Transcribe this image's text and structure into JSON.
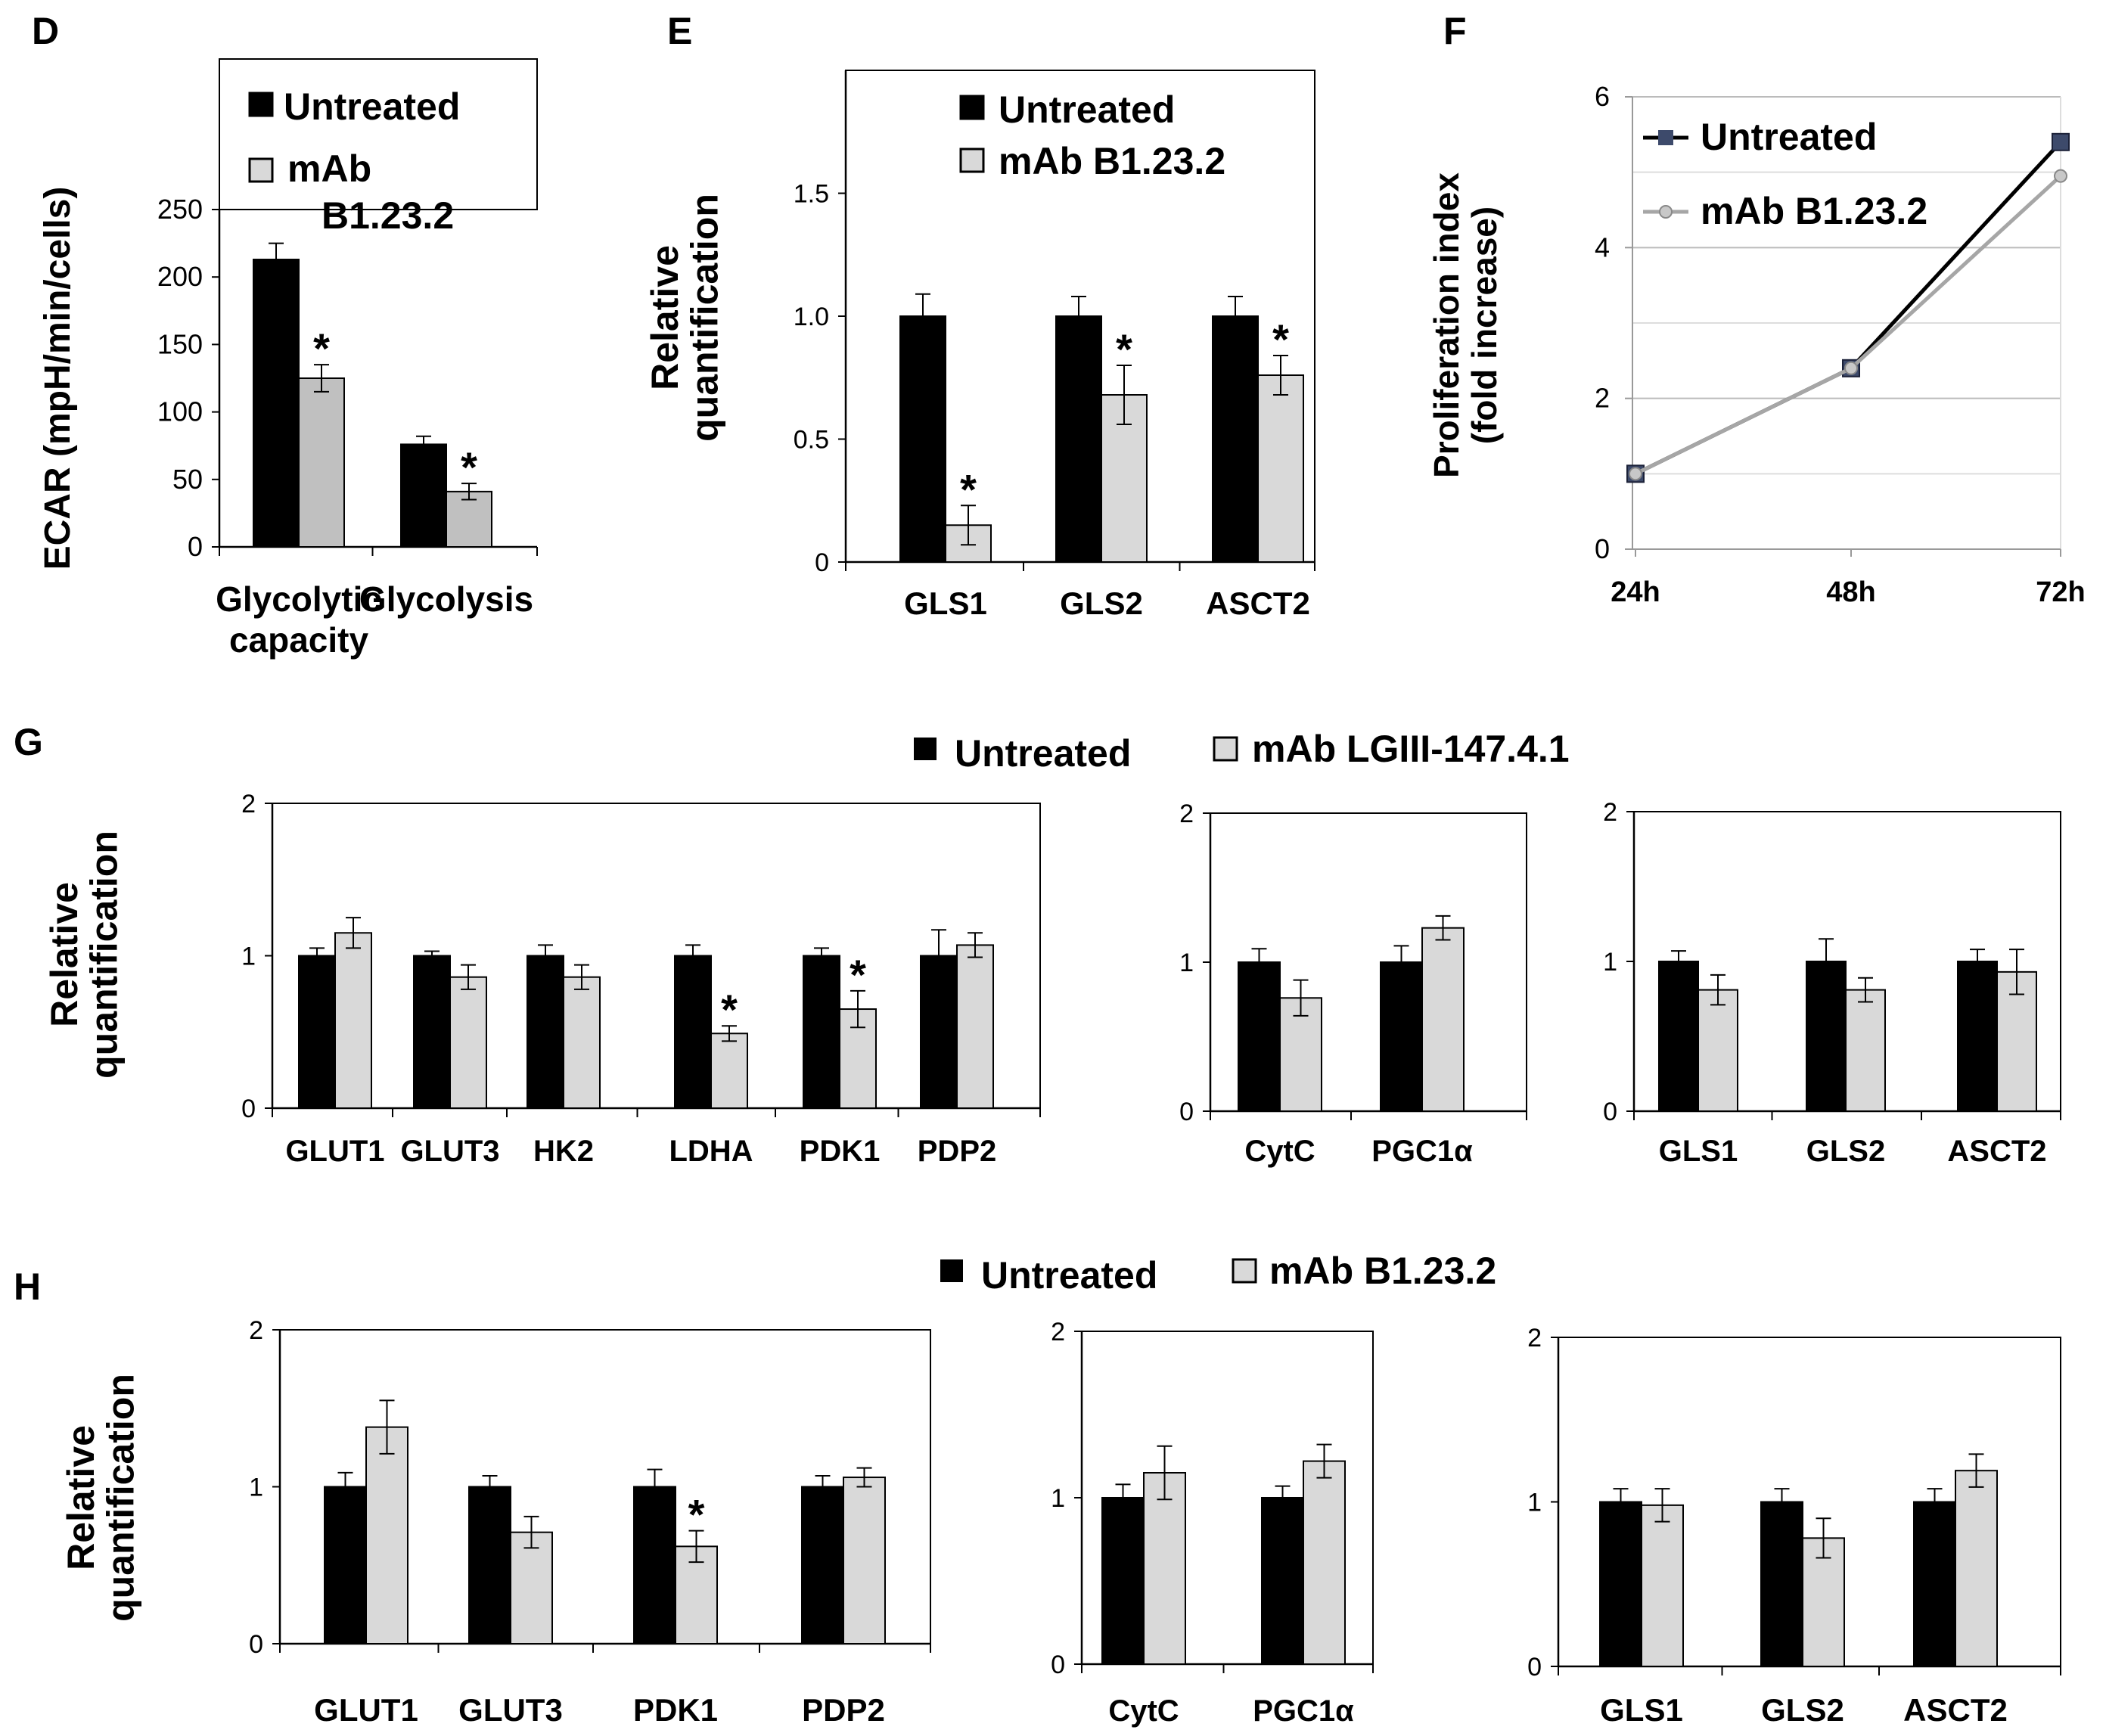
{
  "panel_letters": {
    "D": "D",
    "E": "E",
    "F": "F",
    "G": "G",
    "H": "H"
  },
  "colors": {
    "treated_fill": "#d9d9d9",
    "treated_fill_d": "#c0c0c0",
    "untreated_fill": "#000000",
    "line_untreated": "#000000",
    "line_treated": "#a6a6a6",
    "grid": "#d0d0d0"
  },
  "group_legends": {
    "G": {
      "items": [
        "Untreated",
        "mAb LGIII-147.4.1"
      ]
    },
    "H": {
      "items": [
        "Untreated",
        "mAb B1.23.2"
      ]
    }
  },
  "chart_data": [
    {
      "id": "D",
      "type": "bar",
      "ylabel": "ECAR (mpH/min/cells)",
      "ylim": [
        0,
        250
      ],
      "yticks": [
        0,
        50,
        100,
        150,
        200,
        250
      ],
      "categories": [
        "Glycolytic capacity",
        "Glycolysis"
      ],
      "category_lines": [
        [
          "Glycolytic",
          "capacity"
        ],
        [
          "Glycolysis"
        ]
      ],
      "legend": [
        "Untreated",
        "mAb",
        "B1.23.2"
      ],
      "series": [
        {
          "name": "Untreated",
          "values": [
            213,
            76
          ],
          "errors": [
            12,
            6
          ],
          "stars": [
            false,
            false
          ]
        },
        {
          "name": "mAb B1.23.2",
          "values": [
            125,
            41
          ],
          "errors": [
            10,
            6
          ],
          "stars": [
            true,
            true
          ]
        }
      ]
    },
    {
      "id": "E",
      "type": "bar",
      "ylabel": [
        "Relative",
        "quantification"
      ],
      "ylim": [
        0,
        2
      ],
      "yticks": [
        "0",
        "0.5",
        "1.0",
        "1.5"
      ],
      "categories": [
        "GLS1",
        "GLS2",
        "ASCT2"
      ],
      "legend": [
        "Untreated",
        "mAb B1.23.2"
      ],
      "series": [
        {
          "name": "Untreated",
          "values": [
            1.0,
            1.0,
            1.0
          ],
          "errors": [
            0.09,
            0.08,
            0.08
          ],
          "stars": [
            false,
            false,
            false
          ]
        },
        {
          "name": "mAb B1.23.2",
          "values": [
            0.15,
            0.68,
            0.76
          ],
          "errors": [
            0.08,
            0.12,
            0.08
          ],
          "stars": [
            true,
            true,
            true
          ]
        }
      ]
    },
    {
      "id": "F",
      "type": "line",
      "ylabel": [
        "Proliferation index",
        "(fold increase)"
      ],
      "ylim": [
        0,
        6
      ],
      "yticks": [
        0,
        2,
        4,
        6
      ],
      "x": [
        "24h",
        "48h",
        "72h"
      ],
      "grid": true,
      "legend": [
        "Untreated",
        "mAb B1.23.2"
      ],
      "series": [
        {
          "name": "Untreated",
          "values": [
            1.0,
            2.4,
            5.4
          ]
        },
        {
          "name": "mAb B1.23.2",
          "values": [
            1.0,
            2.4,
            4.95
          ]
        }
      ]
    },
    {
      "id": "G1",
      "type": "bar",
      "ylabel": [
        "Relative",
        "quantification"
      ],
      "ylim": [
        0,
        2
      ],
      "yticks": [
        0,
        1,
        2
      ],
      "categories": [
        "GLUT1",
        "GLUT3",
        "HK2",
        "LDHA",
        "PDK1",
        "PDP2"
      ],
      "series": [
        {
          "name": "Untreated",
          "values": [
            1.0,
            1.0,
            1.0,
            1.0,
            1.0,
            1.0
          ],
          "errors": [
            0.05,
            0.03,
            0.07,
            0.07,
            0.05,
            0.17
          ],
          "stars": [
            false,
            false,
            false,
            false,
            false,
            false
          ]
        },
        {
          "name": "mAb LGIII-147.4.1",
          "values": [
            1.15,
            0.86,
            0.86,
            0.49,
            0.65,
            1.07
          ],
          "errors": [
            0.1,
            0.08,
            0.08,
            0.05,
            0.12,
            0.08
          ],
          "stars": [
            false,
            false,
            false,
            true,
            true,
            false
          ]
        }
      ]
    },
    {
      "id": "G2",
      "type": "bar",
      "ylim": [
        0,
        2
      ],
      "yticks": [
        0,
        1,
        2
      ],
      "categories": [
        "CytC",
        "PGC1α"
      ],
      "series": [
        {
          "name": "Untreated",
          "values": [
            1.0,
            1.0
          ],
          "errors": [
            0.09,
            0.11
          ],
          "stars": [
            false,
            false
          ]
        },
        {
          "name": "mAb LGIII-147.4.1",
          "values": [
            0.76,
            1.23
          ],
          "errors": [
            0.12,
            0.08
          ],
          "stars": [
            false,
            false
          ]
        }
      ]
    },
    {
      "id": "G3",
      "type": "bar",
      "ylim": [
        0,
        2
      ],
      "yticks": [
        0,
        1,
        2
      ],
      "categories": [
        "GLS1",
        "GLS2",
        "ASCT2"
      ],
      "series": [
        {
          "name": "Untreated",
          "values": [
            1.0,
            1.0,
            1.0
          ],
          "errors": [
            0.07,
            0.15,
            0.08
          ],
          "stars": [
            false,
            false,
            false
          ]
        },
        {
          "name": "mAb LGIII-147.4.1",
          "values": [
            0.81,
            0.81,
            0.93
          ],
          "errors": [
            0.1,
            0.08,
            0.15
          ],
          "stars": [
            false,
            false,
            false
          ]
        }
      ]
    },
    {
      "id": "H1",
      "type": "bar",
      "ylabel": [
        "Relative",
        "quantification"
      ],
      "ylim": [
        0,
        2
      ],
      "yticks": [
        0,
        1,
        2
      ],
      "categories": [
        "GLUT1",
        "GLUT3",
        "PDK1",
        "PDP2"
      ],
      "series": [
        {
          "name": "Untreated",
          "values": [
            1.0,
            1.0,
            1.0,
            1.0
          ],
          "errors": [
            0.09,
            0.07,
            0.11,
            0.07
          ],
          "stars": [
            false,
            false,
            false,
            false
          ]
        },
        {
          "name": "mAb B1.23.2",
          "values": [
            1.38,
            0.71,
            0.62,
            1.06
          ],
          "errors": [
            0.17,
            0.1,
            0.1,
            0.06
          ],
          "stars": [
            false,
            false,
            true,
            false
          ]
        }
      ]
    },
    {
      "id": "H2",
      "type": "bar",
      "ylim": [
        0,
        2
      ],
      "yticks": [
        0,
        1,
        2
      ],
      "categories": [
        "CytC",
        "PGC1α"
      ],
      "series": [
        {
          "name": "Untreated",
          "values": [
            1.0,
            1.0
          ],
          "errors": [
            0.08,
            0.07
          ],
          "stars": [
            false,
            false
          ]
        },
        {
          "name": "mAb B1.23.2",
          "values": [
            1.15,
            1.22
          ],
          "errors": [
            0.16,
            0.1
          ],
          "stars": [
            false,
            false
          ]
        }
      ]
    },
    {
      "id": "H3",
      "type": "bar",
      "ylim": [
        0,
        2
      ],
      "yticks": [
        0,
        1,
        2
      ],
      "categories": [
        "GLS1",
        "GLS2",
        "ASCT2"
      ],
      "series": [
        {
          "name": "Untreated",
          "values": [
            1.0,
            1.0,
            1.0
          ],
          "errors": [
            0.08,
            0.08,
            0.08
          ],
          "stars": [
            false,
            false,
            false
          ]
        },
        {
          "name": "mAb B1.23.2",
          "values": [
            0.98,
            0.78,
            1.19
          ],
          "errors": [
            0.1,
            0.12,
            0.1
          ],
          "stars": [
            false,
            false,
            false
          ]
        }
      ]
    }
  ]
}
